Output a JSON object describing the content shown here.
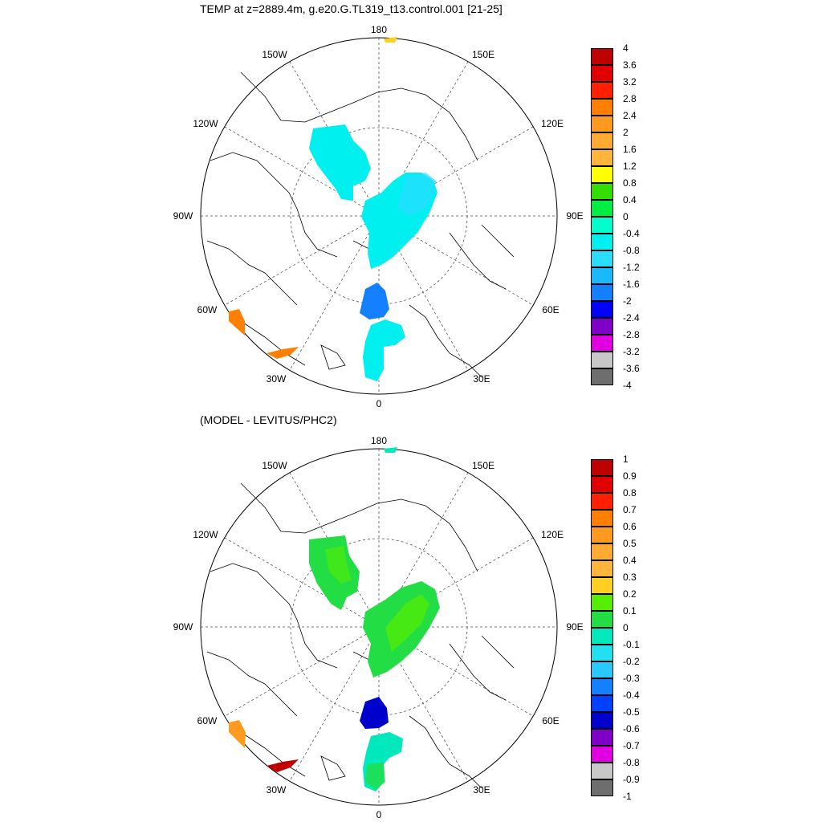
{
  "titles": {
    "top": "TEMP at z=2889.4m, g.e20.G.TL319_t13.control.001 [21-25]",
    "bottom": "(MODEL - LEVITUS/PHC2)"
  },
  "longitude_labels": {
    "n180": "180",
    "w150": "150W",
    "e150": "150E",
    "w120": "120W",
    "e120": "120E",
    "w90": "90W",
    "e90": "90E",
    "w60": "60W",
    "e60": "60E",
    "w30": "30W",
    "e30": "30E",
    "s0": "0"
  },
  "legend_top": {
    "labels": [
      "4",
      "3.6",
      "3.2",
      "2.8",
      "2.4",
      "2",
      "1.6",
      "1.2",
      "0.8",
      "0.4",
      "0",
      "-0.4",
      "-0.8",
      "-1.2",
      "-1.6",
      "-2",
      "-2.4",
      "-2.8",
      "-3.2",
      "-3.6",
      "-4"
    ],
    "colors": [
      "#c00000",
      "#e00000",
      "#ff2000",
      "#ff8000",
      "#ff9a20",
      "#ffaa30",
      "#ffb43c",
      "#ffff00",
      "#33dd00",
      "#00ee44",
      "#00ffcc",
      "#00f0f0",
      "#2adcff",
      "#1ab8ff",
      "#1480ff",
      "#0000ff",
      "#8000c8",
      "#e000e0",
      "#c8c8c8",
      "#6e6e6e"
    ]
  },
  "legend_bottom": {
    "labels": [
      "1",
      "0.9",
      "0.8",
      "0.7",
      "0.6",
      "0.5",
      "0.4",
      "0.3",
      "0.2",
      "0.1",
      "0",
      "-0.1",
      "-0.2",
      "-0.3",
      "-0.4",
      "-0.5",
      "-0.6",
      "-0.7",
      "-0.8",
      "-0.9",
      "-1"
    ],
    "colors": [
      "#c00000",
      "#e00000",
      "#ff2000",
      "#ff8000",
      "#ff9a20",
      "#ffaa30",
      "#ffb43c",
      "#ffd020",
      "#55ee00",
      "#22dd44",
      "#00e8bb",
      "#22e0f0",
      "#2ac8ff",
      "#1480ff",
      "#0040ff",
      "#0000cc",
      "#8000c8",
      "#e000e0",
      "#c8c8c8",
      "#6e6e6e"
    ]
  }
}
